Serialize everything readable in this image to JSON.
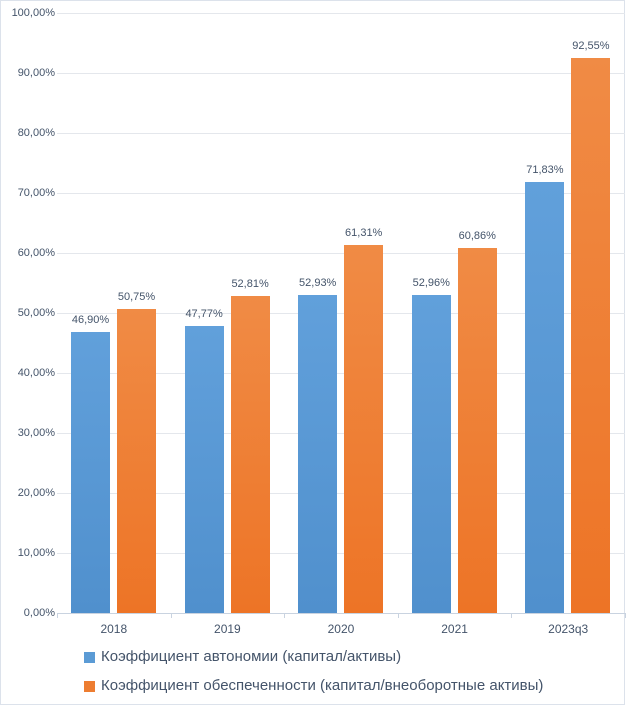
{
  "chart_data": {
    "type": "bar",
    "title": "",
    "xlabel": "",
    "ylabel": "",
    "categories": [
      "2018",
      "2019",
      "2020",
      "2021",
      "2023q3"
    ],
    "series": [
      {
        "name": "Коэффициент автономии (капитал/активы)",
        "color": "#5B9BD5",
        "color_top": "#61A0DB",
        "color_bottom": "#5090CD",
        "values": [
          46.9,
          47.77,
          52.93,
          52.96,
          71.83
        ],
        "value_labels": [
          "46,90%",
          "47,77%",
          "52,93%",
          "52,96%",
          "71,83%"
        ]
      },
      {
        "name": "Коэффициент обеспеченности (капитал/внеоборотные активы)",
        "color": "#ED7D31",
        "color_top": "#F08B45",
        "color_bottom": "#ED7426",
        "values": [
          50.75,
          52.81,
          61.31,
          60.86,
          92.55
        ],
        "value_labels": [
          "50,75%",
          "52,81%",
          "61,31%",
          "60,86%",
          "92,55%"
        ]
      }
    ],
    "ylim": [
      0,
      100
    ],
    "ytick_step": 10,
    "ytick_labels": [
      "0,00%",
      "10,00%",
      "20,00%",
      "30,00%",
      "40,00%",
      "50,00%",
      "60,00%",
      "70,00%",
      "80,00%",
      "90,00%",
      "100,00%"
    ],
    "grid": true,
    "legend_position": "bottom-left",
    "colors": {
      "text": "#44546A",
      "gridline": "#E4E7EC",
      "axis_line": "#C9D3E0",
      "frame_border": "#DCE2EB"
    }
  }
}
